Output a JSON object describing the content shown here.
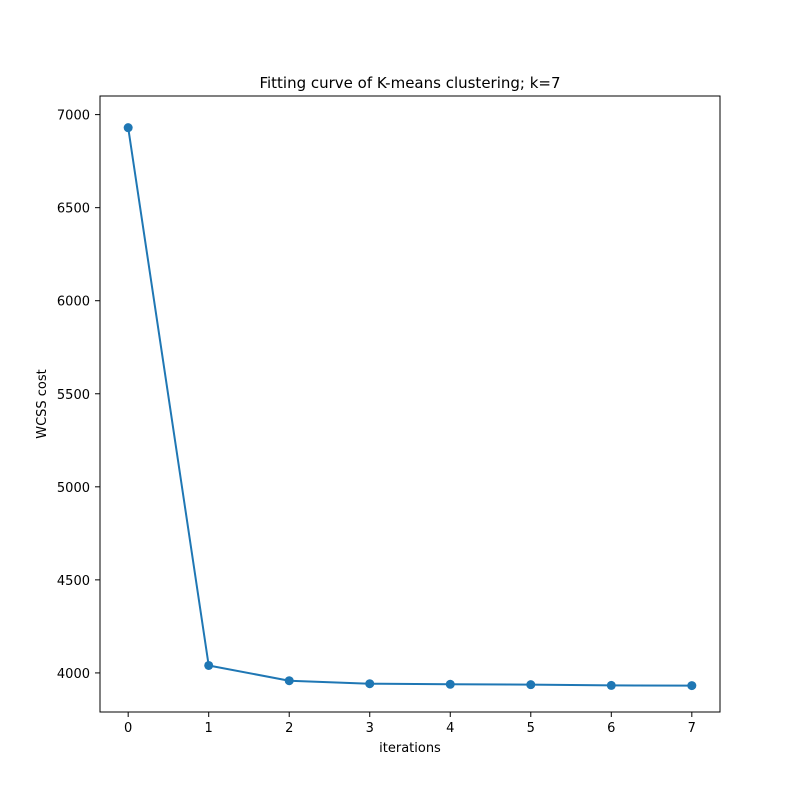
{
  "chart_data": {
    "type": "line",
    "title": "Fitting curve of K-means clustering; k=7",
    "xlabel": "iterations",
    "ylabel": "WCSS cost",
    "x": [
      0,
      1,
      2,
      3,
      4,
      5,
      6,
      7
    ],
    "series": [
      {
        "values": [
          6930,
          4040,
          3958,
          3942,
          3939,
          3937,
          3933,
          3932
        ],
        "color": "#1f77b4",
        "marker": "circle"
      }
    ],
    "xlim": [
      -0.35,
      7.35
    ],
    "ylim": [
      3790,
      7100
    ],
    "xticks": [
      0,
      1,
      2,
      3,
      4,
      5,
      6,
      7
    ],
    "yticks": [
      4000,
      4500,
      5000,
      5500,
      6000,
      6500,
      7000
    ],
    "grid": false,
    "legend": "none"
  }
}
